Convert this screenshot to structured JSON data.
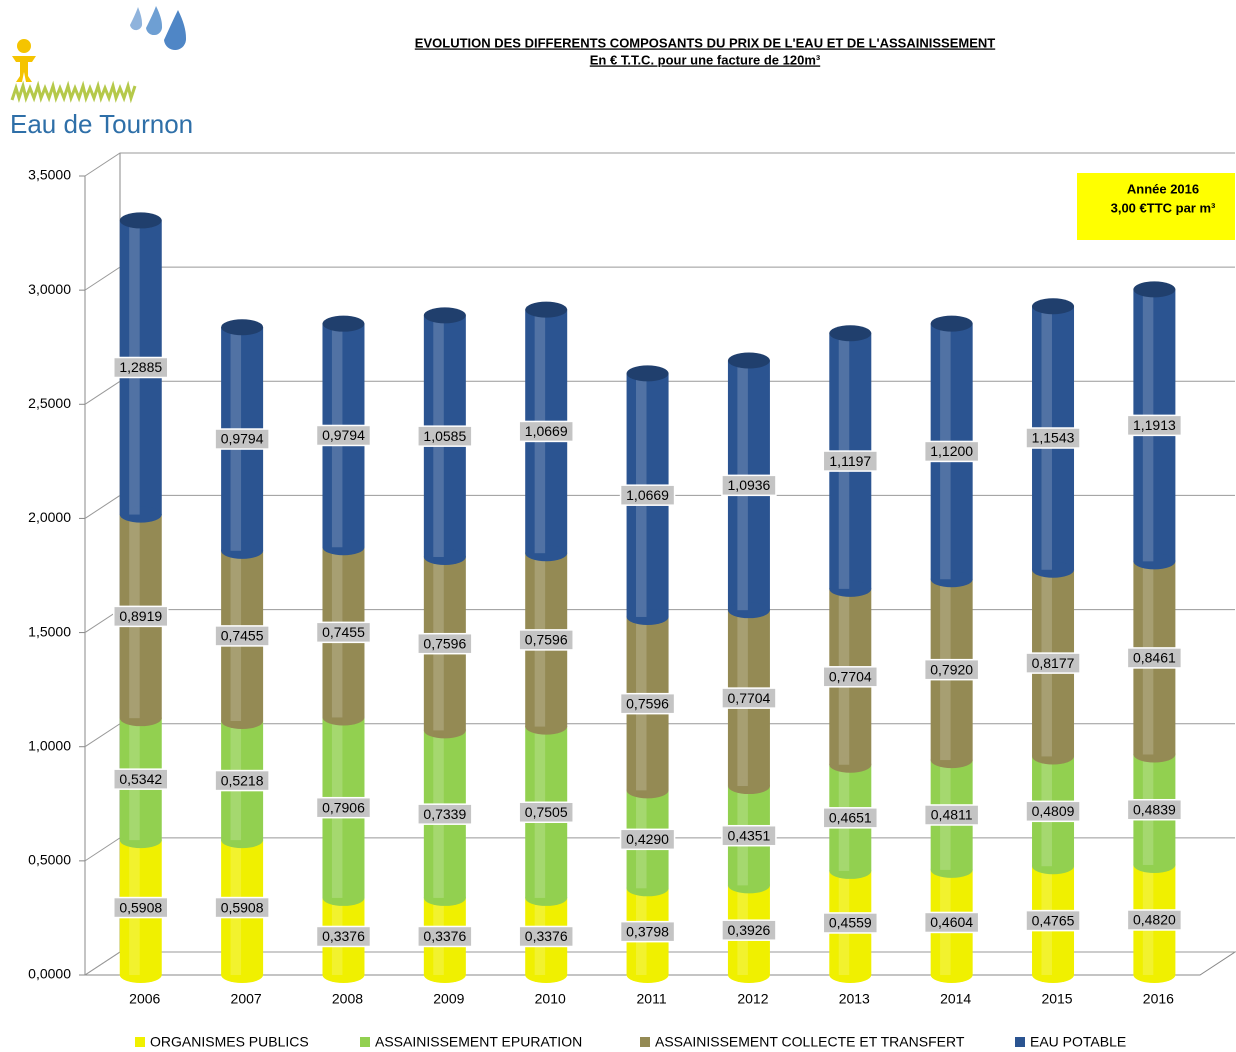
{
  "logo": {
    "text": "Eau de Tournon"
  },
  "chart_data": {
    "type": "bar",
    "stacked": true,
    "title": "EVOLUTION DES DIFFERENTS COMPOSANTS DU PRIX DE L'EAU ET DE L'ASSAINISSEMENT",
    "subtitle": "En € T.T.C. pour une facture de 120m³",
    "annotation": [
      "Année 2016",
      "3,00 €TTC par m³"
    ],
    "categories": [
      "2006",
      "2007",
      "2008",
      "2009",
      "2010",
      "2011",
      "2012",
      "2013",
      "2014",
      "2015",
      "2016"
    ],
    "series": [
      {
        "name": "ORGANISMES PUBLICS",
        "color": "#f0f000",
        "values": [
          0.5908,
          0.5908,
          0.3376,
          0.3376,
          0.3376,
          0.3798,
          0.3926,
          0.4559,
          0.4604,
          0.4765,
          0.482
        ],
        "value_labels": [
          "0,5908",
          "0,5908",
          "0,3376",
          "0,3376",
          "0,3376",
          "0,3798",
          "0,3926",
          "0,4559",
          "0,4604",
          "0,4765",
          "0,4820"
        ]
      },
      {
        "name": "ASSAINISSEMENT EPURATION",
        "color": "#92d050",
        "values": [
          0.5342,
          0.5218,
          0.7906,
          0.7339,
          0.7505,
          0.429,
          0.4351,
          0.4651,
          0.4811,
          0.4809,
          0.4839
        ],
        "value_labels": [
          "0,5342",
          "0,5218",
          "0,7906",
          "0,7339",
          "0,7505",
          "0,4290",
          "0,4351",
          "0,4651",
          "0,4811",
          "0,4809",
          "0,4839"
        ]
      },
      {
        "name": "ASSAINISSEMENT COLLECTE ET TRANSFERT",
        "color": "#948a54",
        "values": [
          0.8919,
          0.7455,
          0.7455,
          0.7596,
          0.7596,
          0.7596,
          0.7704,
          0.7704,
          0.792,
          0.8177,
          0.8461
        ],
        "value_labels": [
          "0,8919",
          "0,7455",
          "0,7455",
          "0,7596",
          "0,7596",
          "0,7596",
          "0,7704",
          "0,7704",
          "0,7920",
          "0,8177",
          "0,8461"
        ]
      },
      {
        "name": "EAU POTABLE",
        "color": "#2b5491",
        "values": [
          1.2885,
          0.9794,
          0.9794,
          1.0585,
          1.0669,
          1.0669,
          1.0936,
          1.1197,
          1.12,
          1.1543,
          1.1913
        ],
        "value_labels": [
          "1,2885",
          "0,9794",
          "0,9794",
          "1,0585",
          "1,0669",
          "1,0669",
          "1,0936",
          "1,1197",
          "1,1200",
          "1,1543",
          "1,1913"
        ]
      }
    ],
    "ylim": [
      0,
      3.5
    ],
    "yticks": [
      {
        "value": 0,
        "label": "0,0000"
      },
      {
        "value": 0.5,
        "label": "0,5000"
      },
      {
        "value": 1,
        "label": "1,0000"
      },
      {
        "value": 1.5,
        "label": "1,5000"
      },
      {
        "value": 2,
        "label": "2,0000"
      },
      {
        "value": 2.5,
        "label": "2,5000"
      },
      {
        "value": 3,
        "label": "3,0000"
      },
      {
        "value": 3.5,
        "label": "3,5000"
      }
    ],
    "grid": true,
    "legend": "bottom"
  }
}
